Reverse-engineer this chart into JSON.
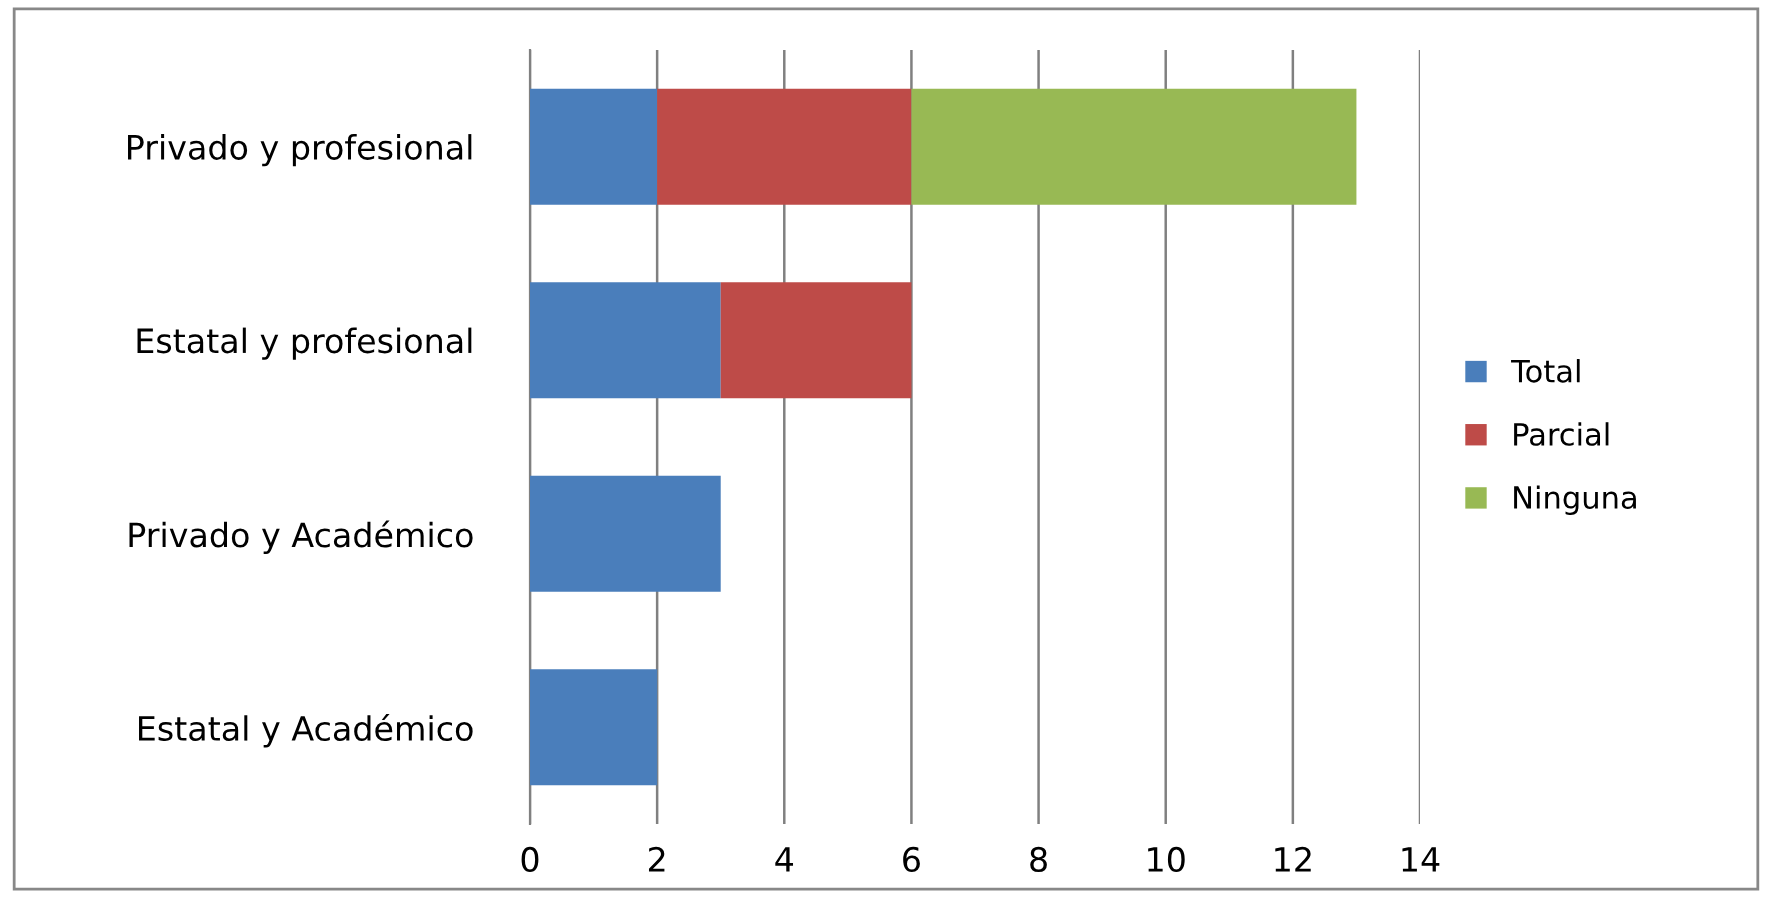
{
  "chart_data": {
    "type": "bar",
    "orientation": "horizontal",
    "stacked": true,
    "categories": [
      "Privado y profesional",
      "Estatal y profesional",
      "Privado y Académico",
      "Estatal y Académico"
    ],
    "series": [
      {
        "name": "Total",
        "color": "#4a7ebb",
        "values": [
          2,
          3,
          3,
          2
        ]
      },
      {
        "name": "Parcial",
        "color": "#be4b48",
        "values": [
          4,
          3,
          0,
          0
        ]
      },
      {
        "name": "Ninguna",
        "color": "#98b954",
        "values": [
          7,
          0,
          0,
          0
        ]
      }
    ],
    "xlim": [
      0,
      14
    ],
    "xticks": [
      0,
      2,
      4,
      6,
      8,
      10,
      12,
      14
    ],
    "grid": "x",
    "legend": "right"
  }
}
